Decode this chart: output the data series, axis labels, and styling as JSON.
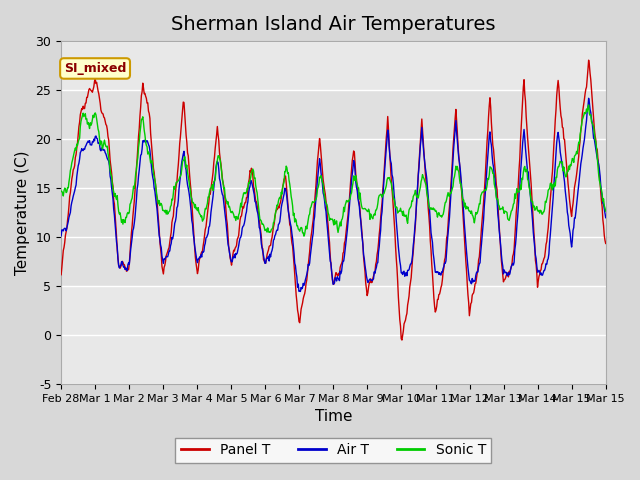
{
  "title": "Sherman Island Air Temperatures",
  "xlabel": "Time",
  "ylabel": "Temperature (C)",
  "ylim": [
    -5,
    30
  ],
  "yticks": [
    -5,
    0,
    5,
    10,
    15,
    20,
    25,
    30
  ],
  "legend_label": "SI_mixed",
  "series_colors": {
    "Panel T": "#cc0000",
    "Air T": "#0000cc",
    "Sonic T": "#00cc00"
  },
  "fig_bg": "#d8d8d8",
  "ax_bg": "#e8e8e8",
  "title_fontsize": 14,
  "axis_label_fontsize": 11,
  "tick_fontsize": 9,
  "legend_box_color": "#ffffcc",
  "legend_box_edge": "#cc9900",
  "legend_text_color": "#8b0000",
  "key_times": [
    0,
    0.25,
    0.6,
    1.0,
    1.4,
    1.7,
    2.0,
    2.4,
    2.6,
    3.0,
    3.3,
    3.6,
    4.0,
    4.3,
    4.6,
    5.0,
    5.3,
    5.6,
    6.0,
    6.3,
    6.6,
    7.0,
    7.3,
    7.6,
    8.0,
    8.3,
    8.6,
    9.0,
    9.3,
    9.6,
    10.0,
    10.3,
    10.6,
    11.0,
    11.3,
    11.6,
    12.0,
    12.3,
    12.6,
    13.0,
    13.3,
    13.6,
    14.0,
    14.3,
    14.6,
    15.0,
    15.5,
    16.0
  ],
  "panel_t_vals": [
    6,
    14,
    23,
    26,
    20,
    7,
    7,
    26,
    22,
    6,
    12,
    24,
    6,
    12,
    21,
    7,
    12,
    17,
    7,
    12,
    16,
    1,
    8,
    20,
    5,
    8,
    19,
    4,
    8,
    22,
    -1,
    6,
    22,
    2,
    8,
    23,
    2,
    8,
    24,
    5,
    8,
    26,
    5,
    10,
    26,
    12,
    28,
    9
  ],
  "air_t_vals": [
    10,
    12,
    19,
    20,
    18,
    7,
    7,
    20,
    19,
    7,
    10,
    19,
    7,
    10,
    18,
    7,
    10,
    16,
    7,
    10,
    15,
    4,
    7,
    18,
    5,
    7,
    18,
    5,
    7,
    21,
    6,
    7,
    21,
    6,
    7,
    22,
    5,
    7,
    21,
    6,
    7,
    21,
    6,
    7,
    21,
    9,
    24,
    12
  ],
  "sonic_t_vals": [
    14,
    16,
    22,
    22,
    18,
    12,
    12,
    22,
    18,
    12,
    14,
    18,
    12,
    13,
    18,
    12,
    13,
    17,
    10,
    12,
    17,
    10,
    12,
    16,
    11,
    12,
    16,
    12,
    13,
    16,
    12,
    13,
    16,
    12,
    13,
    17,
    12,
    13,
    17,
    12,
    13,
    17,
    12,
    14,
    17,
    17,
    24,
    12
  ]
}
